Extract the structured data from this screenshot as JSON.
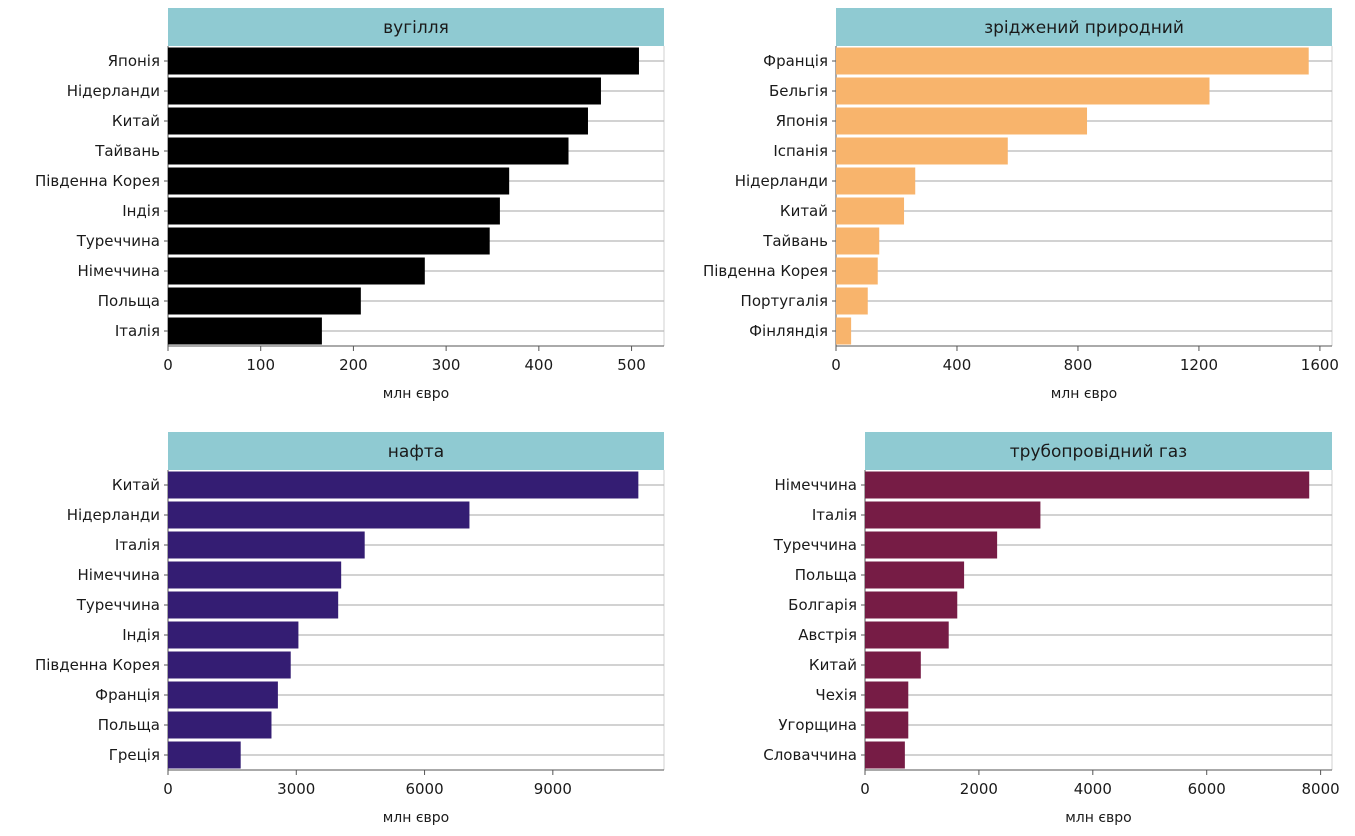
{
  "chart_data": [
    {
      "type": "bar",
      "orientation": "horizontal",
      "facet_title": "вугілля",
      "color": "#000000",
      "xlabel": "млн євро",
      "xlim": [
        0,
        535
      ],
      "xticks": [
        0,
        100,
        200,
        300,
        400,
        500
      ],
      "categories": [
        "Японія",
        "Нідерланди",
        "Китай",
        "Тайвань",
        "Південна Корея",
        "Індія",
        "Туреччина",
        "Німеччина",
        "Польща",
        "Італія"
      ],
      "values": [
        508,
        467,
        453,
        432,
        368,
        358,
        347,
        277,
        208,
        166
      ],
      "grid": true
    },
    {
      "type": "bar",
      "orientation": "horizontal",
      "facet_title": "зріджений природний",
      "color": "#F8B46C",
      "xlabel": "млн євро",
      "xlim": [
        0,
        1640
      ],
      "xticks": [
        0,
        400,
        800,
        1200,
        1600
      ],
      "categories": [
        "Франція",
        "Бельгія",
        "Японія",
        "Іспанія",
        "Нідерланди",
        "Китай",
        "Тайвань",
        "Південна Корея",
        "Португалія",
        "Фінляндія"
      ],
      "values": [
        1563,
        1235,
        830,
        568,
        262,
        225,
        143,
        138,
        105,
        50
      ],
      "grid": true
    },
    {
      "type": "bar",
      "orientation": "horizontal",
      "facet_title": "нафта",
      "color": "#341D73",
      "xlabel": "млн євро",
      "xlim": [
        0,
        11600
      ],
      "xticks": [
        0,
        3000,
        6000,
        9000
      ],
      "categories": [
        "Китай",
        "Нідерланди",
        "Італія",
        "Німеччина",
        "Туреччина",
        "Індія",
        "Південна Корея",
        "Франція",
        "Польща",
        "Греція"
      ],
      "values": [
        11000,
        7050,
        4600,
        4050,
        3980,
        3050,
        2870,
        2570,
        2420,
        1700
      ],
      "grid": true
    },
    {
      "type": "bar",
      "orientation": "horizontal",
      "facet_title": "трубопровідний газ",
      "color": "#761C45",
      "xlabel": "млн євро",
      "xlim": [
        0,
        8200
      ],
      "xticks": [
        0,
        2000,
        4000,
        6000,
        8000
      ],
      "categories": [
        "Німеччина",
        "Італія",
        "Туреччина",
        "Польща",
        "Болгарія",
        "Австрія",
        "Китай",
        "Чехія",
        "Угорщина",
        "Словаччина"
      ],
      "values": [
        7800,
        3080,
        2320,
        1740,
        1620,
        1470,
        980,
        760,
        760,
        700
      ],
      "grid": true
    }
  ]
}
